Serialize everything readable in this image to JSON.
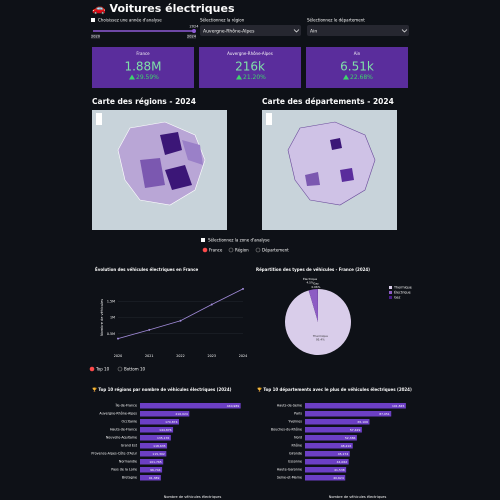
{
  "header": {
    "title": "🚗 Voitures électriques"
  },
  "controls": {
    "year_checkbox": "Choisissez une année d'analyse",
    "year_slider": {
      "min": "2020",
      "max": "2024",
      "value": "2024"
    },
    "region_select": {
      "label": "Sélectionnez la région",
      "value": "Auvergne-Rhône-Alpes"
    },
    "department_select": {
      "label": "Sélectionnez le département",
      "value": "Ain"
    }
  },
  "metrics": [
    {
      "label": "France",
      "value": "1.88M",
      "delta": "29.59%"
    },
    {
      "label": "Auvergne-Rhône-Alpes",
      "value": "216k",
      "delta": "21.20%"
    },
    {
      "label": "Ain",
      "value": "6.51k",
      "delta": "22.68%"
    }
  ],
  "maps": {
    "regions_title": "Carte des régions - 2024",
    "departments_title": "Carte des départements - 2024"
  },
  "zone": {
    "label": "Sélectionnez la zone d'analyse",
    "options": [
      "France",
      "Région",
      "Département"
    ]
  },
  "line_chart": {
    "type": "line",
    "title": "Évolution des véhicules électriques en France",
    "y_label": "Nombre de véhicules",
    "x": [
      2020,
      2021,
      2022,
      2023,
      2024
    ],
    "values": [
      350000,
      620000,
      900000,
      1400000,
      1880000
    ],
    "color": "#a08ad8",
    "xlim": [
      2020,
      2024
    ],
    "ylim": [
      0,
      2000000
    ],
    "yticks": [
      {
        "value": 500000,
        "label": "0.5M"
      },
      {
        "value": 1000000,
        "label": "1M"
      },
      {
        "value": 1500000,
        "label": "1.5M"
      }
    ]
  },
  "pie_chart": {
    "type": "pie",
    "title": "Répartition des types de véhicules - France (2024)",
    "categories": [
      "Thermique",
      "Électrique",
      "Gaz"
    ],
    "values": [
      95.4,
      4.5,
      0.06
    ],
    "value_labels": [
      "95.4%",
      "4.5%",
      "0.06%"
    ],
    "colors": [
      "#d9cdea",
      "#8d5cc4",
      "#4a1d8c"
    ]
  },
  "ranking": {
    "options": [
      "Top 10",
      "Bottom 10"
    ]
  },
  "bar_charts": [
    {
      "type": "bar",
      "title": "🏆 Top 10 régions par nombre de véhicules électriques (2024)",
      "x_label": "Nombre de véhicules électriques",
      "categories": [
        "Île-de-France",
        "Auvergne-Rhône-Alpes",
        "Occitanie",
        "Hauts-de-France",
        "Nouvelle-Aquitaine",
        "Grand Est",
        "Provence-Alpes-Côte d'Azur",
        "Normandie",
        "Pays de la Loire",
        "Bretagne"
      ],
      "values": [
        440989,
        216024,
        170874,
        144876,
        135176,
        118635,
        115302,
        101765,
        96744,
        91389
      ],
      "value_labels": [
        "440,989",
        "216,024",
        "170,874",
        "144,876",
        "135,176",
        "118,635",
        "115,302",
        "101,765",
        "96,744",
        "91,389"
      ],
      "color": "#6c3fc4",
      "xlim": [
        0,
        460000
      ]
    },
    {
      "type": "bar",
      "title": "🏆 Top 10 départements avec le plus de véhicules électriques (2024)",
      "x_label": "Nombre de véhicules électriques",
      "categories": [
        "Hauts-de-Seine",
        "Paris",
        "Yvelines",
        "Bouches-du-Rhône",
        "Nord",
        "Rhône",
        "Gironde",
        "Essonne",
        "Haute-Garonne",
        "Seine-et-Marne"
      ],
      "values": [
        101845,
        87051,
        65106,
        57429,
        52386,
        48216,
        45174,
        44062,
        41538,
        40624
      ],
      "value_labels": [
        "101,845",
        "87,051",
        "65,106",
        "57,429",
        "52,386",
        "48,216",
        "45,174",
        "44,062",
        "41,538",
        "40,624"
      ],
      "color": "#6c3fc4",
      "xlim": [
        0,
        106000
      ]
    }
  ]
}
